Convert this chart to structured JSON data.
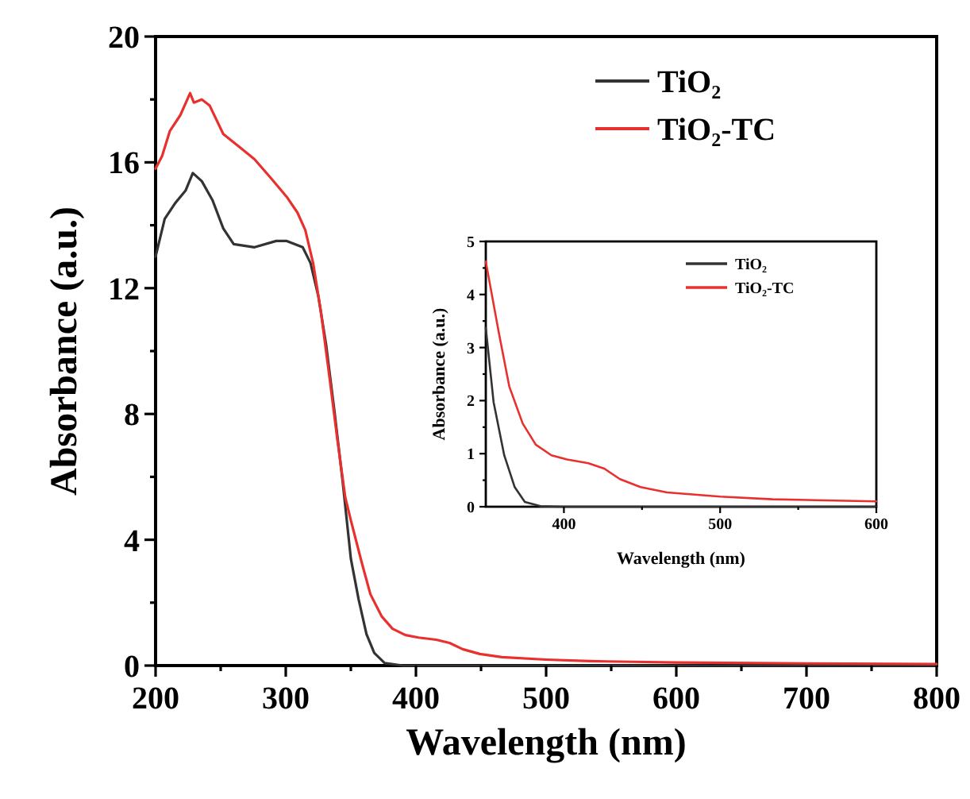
{
  "chart_data": [
    {
      "type": "line",
      "xlabel": "Wavelength (nm)",
      "ylabel": "Absorbance (a.u.)",
      "xlim": [
        200,
        800
      ],
      "ylim": [
        0,
        20
      ],
      "xticks": [
        200,
        {
          "value": 250,
          "label": null
        },
        300,
        {
          "value": 350,
          "label": null
        },
        400,
        {
          "value": 450,
          "label": null
        },
        500,
        {
          "value": 550,
          "label": null
        },
        600,
        {
          "value": 650,
          "label": null
        },
        700,
        {
          "value": 750,
          "label": null
        },
        800
      ],
      "yticks": [
        0,
        {
          "value": 2,
          "label": null
        },
        4,
        {
          "value": 6,
          "label": null
        },
        8,
        {
          "value": 10,
          "label": null
        },
        12,
        {
          "value": 14,
          "label": null
        },
        16,
        {
          "value": 18,
          "label": null
        },
        20
      ],
      "grid": false,
      "legend": "top right",
      "line_style": "solid",
      "marker": "none",
      "series": [
        {
          "name": "TiO₂",
          "color": "#333333",
          "x": [
            200,
            207,
            215,
            223,
            228.6,
            235.5,
            243.7,
            252,
            260,
            276,
            292.7,
            300.8,
            313,
            319,
            325,
            331,
            337.5,
            343.7,
            350,
            356,
            362,
            368,
            376,
            390,
            450,
            600,
            800
          ],
          "values": [
            13.0,
            14.2,
            14.7,
            15.1,
            15.66,
            15.4,
            14.8,
            13.9,
            13.4,
            13.3,
            13.5,
            13.5,
            13.3,
            12.8,
            11.75,
            10.2,
            8.05,
            5.86,
            3.4,
            2.1,
            1.0,
            0.4,
            0.08,
            0,
            0,
            0,
            0
          ]
        },
        {
          "name": "TiO₂-TC",
          "color": "#e8312f",
          "x": [
            200,
            205,
            211,
            219,
            226.5,
            229.4,
            235.5,
            241.6,
            252,
            264,
            276,
            288.6,
            300.8,
            309,
            315,
            321,
            327,
            333.5,
            339.6,
            345.7,
            350,
            358.4,
            365,
            373.6,
            382,
            392,
            402,
            415.7,
            425.8,
            435.9,
            449,
            466,
            500,
            533.5,
            567,
            600,
            700,
            800
          ],
          "values": [
            15.8,
            16.2,
            17.0,
            17.5,
            18.2,
            17.9,
            18.0,
            17.8,
            16.9,
            16.5,
            16.1,
            15.5,
            14.9,
            14.4,
            13.85,
            12.8,
            11.25,
            9.2,
            7.2,
            5.35,
            4.62,
            3.27,
            2.27,
            1.57,
            1.17,
            0.97,
            0.89,
            0.82,
            0.72,
            0.52,
            0.37,
            0.27,
            0.19,
            0.14,
            0.12,
            0.1,
            0.07,
            0.05
          ]
        }
      ]
    },
    {
      "type": "line",
      "xlabel": "Wavelength (nm)",
      "ylabel": "Absorbance (a.u.)",
      "xlim": [
        350,
        600
      ],
      "ylim": [
        0,
        5
      ],
      "xticks": [
        400,
        {
          "value": 450,
          "label": null
        },
        500,
        {
          "value": 550,
          "label": null
        },
        600
      ],
      "yticks": [
        0,
        {
          "value": 0.5,
          "label": null
        },
        1,
        {
          "value": 1.5,
          "label": null
        },
        2,
        {
          "value": 2.5,
          "label": null
        },
        3,
        {
          "value": 3.5,
          "label": null
        },
        4,
        {
          "value": 4.5,
          "label": null
        },
        5
      ],
      "grid": false,
      "legend": "top right",
      "line_style": "solid",
      "marker": "none",
      "series": [
        {
          "name": "TiO₂",
          "color": "#333333",
          "x": [
            350,
            355,
            361.8,
            368.5,
            375,
            385,
            399,
            450,
            500,
            600
          ],
          "values": [
            3.37,
            1.97,
            0.97,
            0.37,
            0.09,
            0.01,
            0,
            0,
            0,
            0
          ]
        },
        {
          "name": "TiO₂-TC",
          "color": "#e8312f",
          "x": [
            350,
            358.4,
            365,
            373.6,
            382,
            392,
            402,
            415.7,
            425.8,
            435.9,
            449,
            466,
            500,
            533.5,
            567,
            600
          ],
          "values": [
            4.62,
            3.27,
            2.27,
            1.57,
            1.17,
            0.97,
            0.89,
            0.82,
            0.72,
            0.52,
            0.37,
            0.27,
            0.19,
            0.14,
            0.12,
            0.1
          ]
        }
      ]
    }
  ]
}
